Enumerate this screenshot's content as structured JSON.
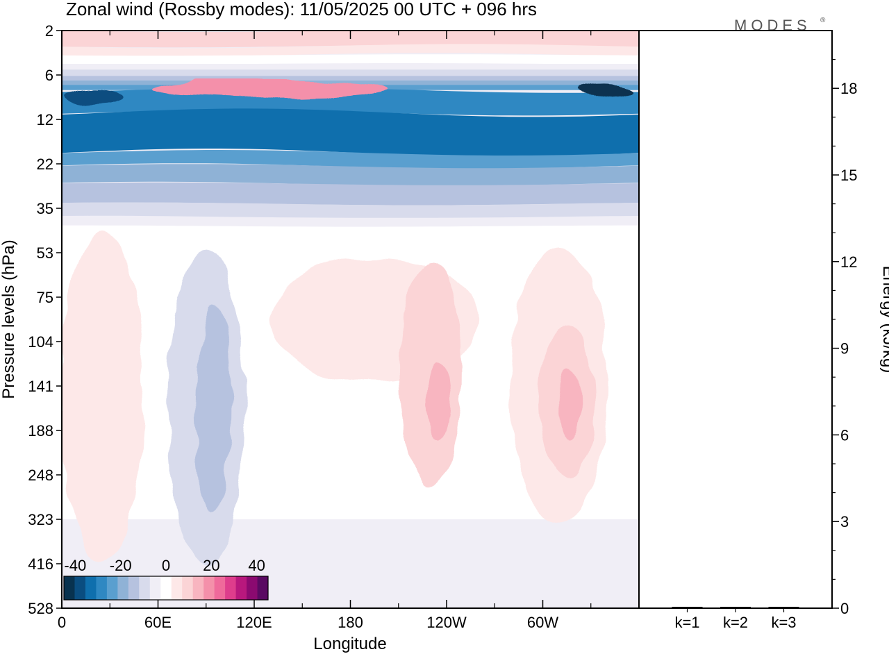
{
  "chart_data": {
    "type": "heatmap",
    "title": "Zonal wind (Rossby modes):  11/05/2025  00 UTC  + 096 hrs",
    "logo": "MODES",
    "xlabel": "Longitude",
    "ylabel": "Pressure levels (hPa)",
    "y2label": "Energy (kJ/kg)",
    "x_ticks": [
      "0",
      "60E",
      "120E",
      "180",
      "120W",
      "60W"
    ],
    "x_tick_degrees": [
      0,
      60,
      120,
      180,
      240,
      300
    ],
    "xlim_degrees": [
      0,
      360
    ],
    "y_ticks": [
      "2",
      "6",
      "12",
      "22",
      "35",
      "53",
      "75",
      "104",
      "141",
      "188",
      "248",
      "323",
      "416",
      "528"
    ],
    "y_scale": "categorical-model-levels",
    "colorbar": {
      "tick_labels": [
        "-40",
        "-20",
        "0",
        "20",
        "40"
      ],
      "tick_values": [
        -40,
        -20,
        0,
        20,
        40
      ],
      "levels": [
        -45,
        -40,
        -35,
        -30,
        -25,
        -20,
        -15,
        -10,
        -5,
        0,
        5,
        10,
        15,
        20,
        25,
        30,
        35,
        40,
        45
      ],
      "colors": [
        "#08324f",
        "#0a4d80",
        "#0f6fad",
        "#2f88c2",
        "#5a9fcf",
        "#8fb2d6",
        "#b6c2df",
        "#d8dbec",
        "#f0eef6",
        "#ffffff",
        "#fde8e8",
        "#fbd4d6",
        "#f8b5c0",
        "#f490aa",
        "#ef6a9b",
        "#de3d8c",
        "#b8187d",
        "#8b0a70",
        "#5a0a62"
      ]
    },
    "energy_bars": {
      "type": "bar",
      "categories": [
        "k=1",
        "k=2",
        "k=3"
      ],
      "values": [
        0.02,
        0.02,
        0.01
      ],
      "ylim": [
        0,
        20
      ],
      "y_ticks": [
        0,
        3,
        6,
        9,
        12,
        15,
        18
      ]
    }
  }
}
